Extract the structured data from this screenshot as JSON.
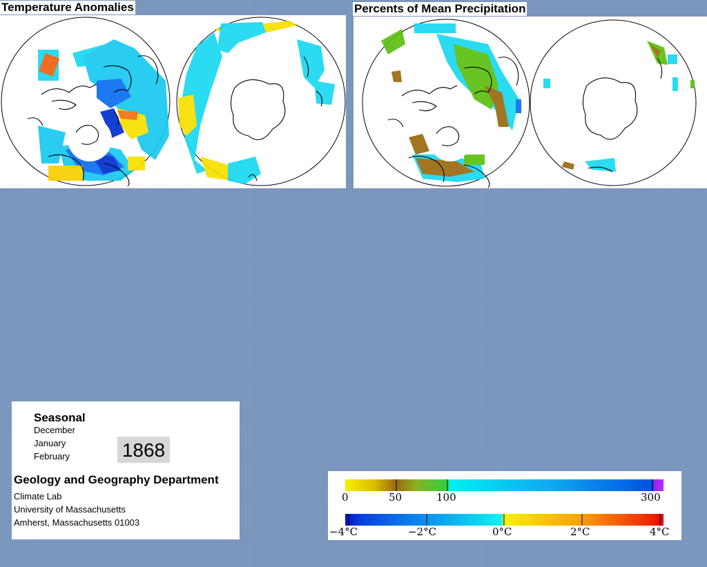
{
  "panels": {
    "temperature_title": "Temperature Anomalies",
    "precipitation_title": "Percents of Mean Precipitation"
  },
  "info": {
    "seasonal_label": "Seasonal",
    "months": [
      "December",
      "January",
      "February"
    ],
    "year": "1868",
    "department": "Geology and Geography Department",
    "lab": "Climate Lab",
    "university": "University of Massachusetts",
    "address": "Amherst, Massachusetts 01003"
  },
  "legend": {
    "precipitation": {
      "ticks": [
        "0",
        "50",
        "100",
        "300"
      ],
      "colors": [
        "#f5f000",
        "#c8a000",
        "#9a6a10",
        "#5cc010",
        "#00e8f0",
        "#1088f0",
        "#0050e0",
        "#a020f0"
      ]
    },
    "temperature": {
      "ticks": [
        "−4°C",
        "−2°C",
        "0°C",
        "2°C",
        "4°C"
      ],
      "colors": [
        "#0010c8",
        "#0a6ef0",
        "#1aa8f0",
        "#10e8f0",
        "#f8f000",
        "#f8b000",
        "#f86000",
        "#e80000"
      ]
    }
  }
}
